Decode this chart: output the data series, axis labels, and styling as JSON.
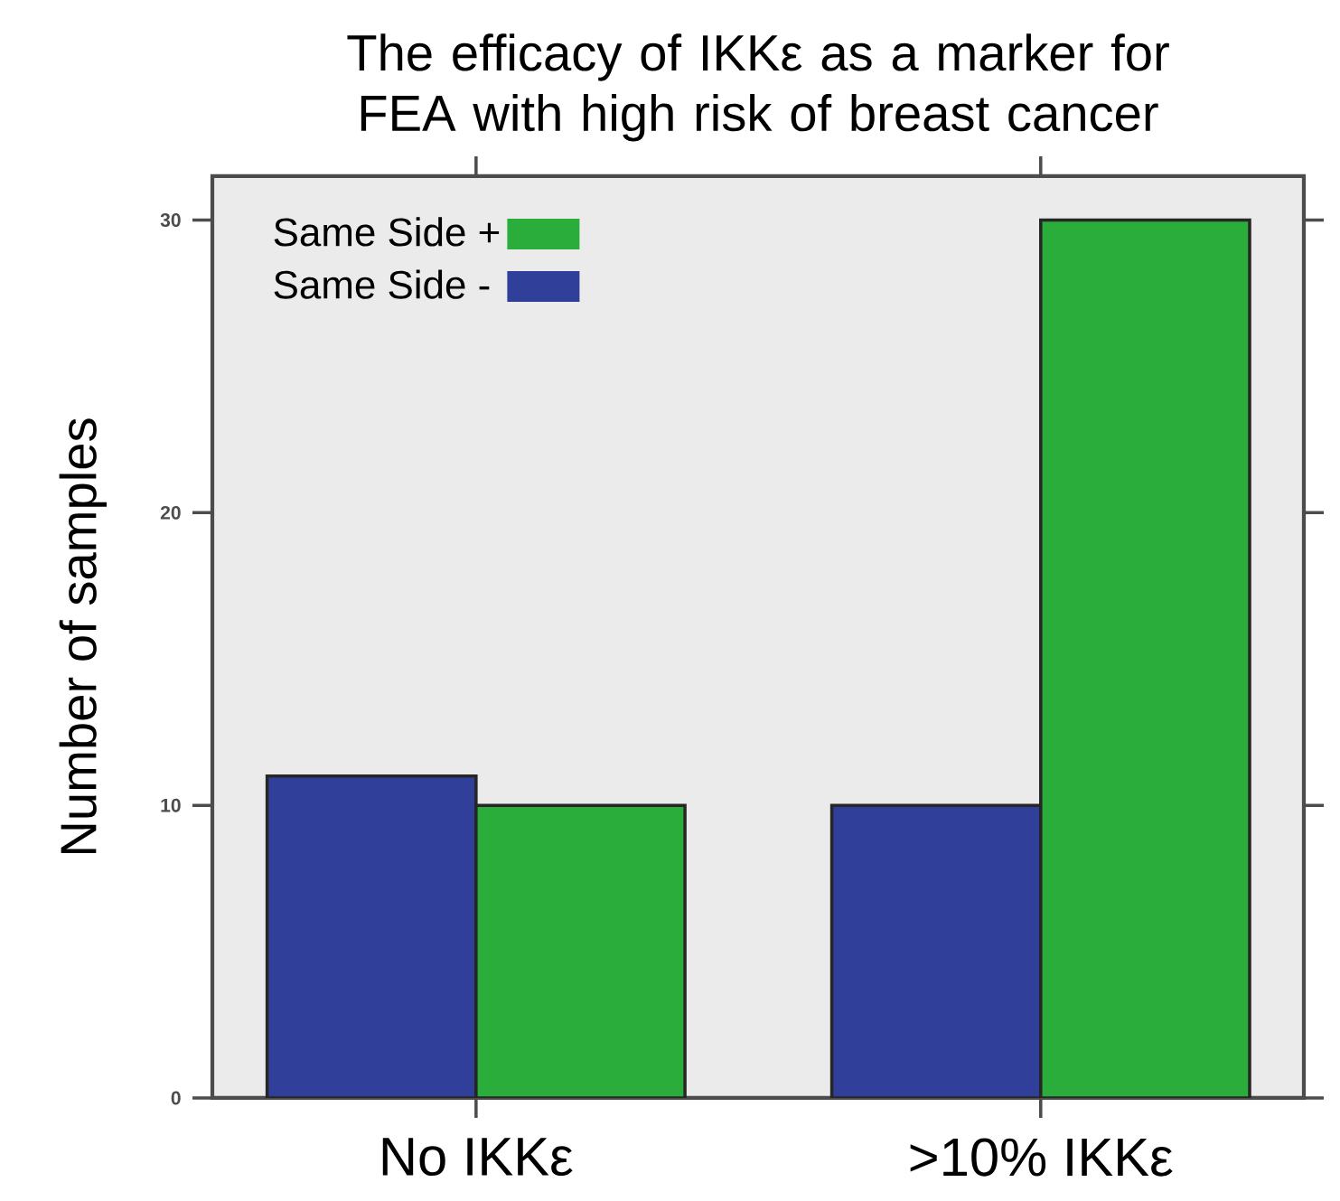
{
  "chart_data": {
    "type": "bar",
    "title": "The efficacy of IKKε as a marker for FEA with high risk of breast cancer",
    "ylabel": "Number of samples",
    "categories": [
      "No IKKε",
      ">10% IKKε"
    ],
    "series": [
      {
        "name": "Same Side -",
        "color": "#303f99",
        "values": [
          11,
          10
        ]
      },
      {
        "name": "Same Side +",
        "color": "#2aad3a",
        "values": [
          10,
          30
        ]
      }
    ],
    "ylim": [
      0,
      31.5
    ],
    "yticks": [
      0,
      10,
      20,
      30
    ],
    "grid": false,
    "legend": "top left"
  }
}
